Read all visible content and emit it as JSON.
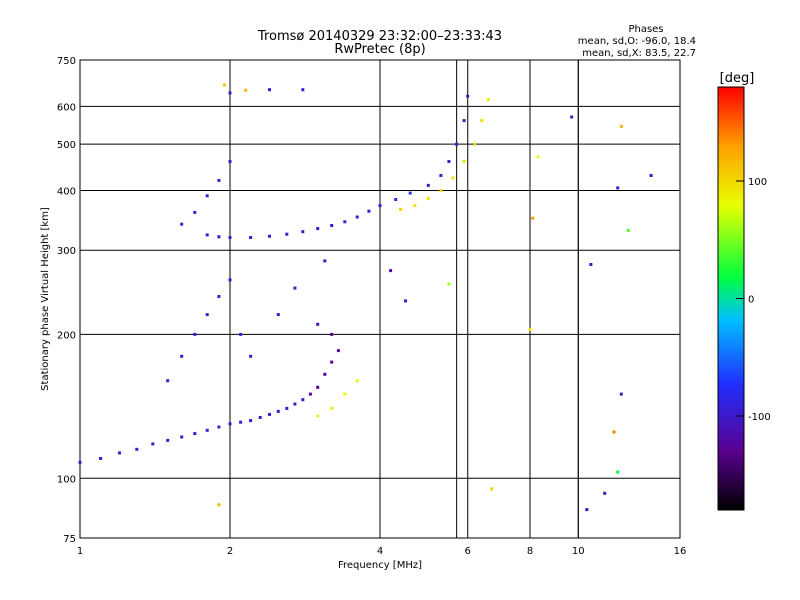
{
  "header": {
    "title_line1": "Tromsø 20140329 23:32:00–23:33:43",
    "title_line2": "RwPretec (8p)"
  },
  "stats": {
    "heading": "Phases",
    "line_o": "mean, sd,O: -96.0, 18.4",
    "line_x": "mean, sd,X: 83.5, 22.7"
  },
  "colorbar": {
    "unit": "[deg]",
    "ticks": [
      {
        "value": 100,
        "label": "100"
      },
      {
        "value": 0,
        "label": "0"
      },
      {
        "value": -100,
        "label": "-100"
      }
    ],
    "range": [
      -180,
      180
    ],
    "colors": [
      "#000000",
      "#5a0090",
      "#2030ff",
      "#00c0ff",
      "#00ff40",
      "#e8ff00",
      "#ffa000",
      "#ff0000"
    ]
  },
  "chart_data": {
    "type": "scatter",
    "title": "Tromsø 20140329 23:32:00–23:33:43",
    "subtitle": "RwPretec (8p)",
    "xlabel": "Frequency [MHz]",
    "ylabel": "Stationary phase Virtual Height [km]",
    "xscale": "log",
    "yscale": "log",
    "xlim": [
      1,
      16
    ],
    "ylim": [
      75,
      750
    ],
    "xticks": [
      {
        "value": 1,
        "label": "1"
      },
      {
        "value": 2,
        "label": "2"
      },
      {
        "value": 4,
        "label": "4"
      },
      {
        "value": 6,
        "label": "6"
      },
      {
        "value": 8,
        "label": "8"
      },
      {
        "value": 10,
        "label": "10"
      },
      {
        "value": 16,
        "label": "16"
      }
    ],
    "xgrid_extra": [
      5.7,
      8,
      10
    ],
    "yticks": [
      {
        "value": 75,
        "label": "75"
      },
      {
        "value": 100,
        "label": "100"
      },
      {
        "value": 200,
        "label": "200"
      },
      {
        "value": 300,
        "label": "300"
      },
      {
        "value": 400,
        "label": "400"
      },
      {
        "value": 500,
        "label": "500"
      },
      {
        "value": 600,
        "label": "600"
      },
      {
        "value": 750,
        "label": "750"
      }
    ],
    "grid": true,
    "color_variable": "phase [deg]",
    "series": [
      {
        "points": [
          [
            1.0,
            108,
            -98
          ],
          [
            1.1,
            110,
            -97
          ],
          [
            1.2,
            113,
            -96
          ],
          [
            1.3,
            115,
            -95
          ],
          [
            1.4,
            118,
            -96
          ],
          [
            1.5,
            120,
            -97
          ],
          [
            1.6,
            122,
            -96
          ],
          [
            1.7,
            124,
            -95
          ],
          [
            1.8,
            126,
            -96
          ],
          [
            1.9,
            128,
            -97
          ],
          [
            2.0,
            130,
            -96
          ],
          [
            2.1,
            131,
            -95
          ],
          [
            2.2,
            132,
            -96
          ],
          [
            2.3,
            134,
            -97
          ],
          [
            2.4,
            136,
            -96
          ],
          [
            2.5,
            138,
            -95
          ],
          [
            2.6,
            140,
            -96
          ],
          [
            2.7,
            143,
            -97
          ],
          [
            2.8,
            146,
            -96
          ],
          [
            2.9,
            150,
            -120
          ],
          [
            3.0,
            155,
            -125
          ],
          [
            3.1,
            165,
            -125
          ],
          [
            3.2,
            175,
            -125
          ],
          [
            3.3,
            185,
            -120
          ],
          [
            1.5,
            160,
            -96
          ],
          [
            1.6,
            180,
            -96
          ],
          [
            1.7,
            200,
            -96
          ],
          [
            1.8,
            220,
            -96
          ],
          [
            1.9,
            240,
            -96
          ],
          [
            2.0,
            260,
            -96
          ],
          [
            2.1,
            200,
            -96
          ],
          [
            2.2,
            180,
            -96
          ],
          [
            2.5,
            220,
            -96
          ],
          [
            2.7,
            250,
            -96
          ],
          [
            3.0,
            210,
            -110
          ],
          [
            3.2,
            200,
            -130
          ],
          [
            1.8,
            323,
            -96
          ],
          [
            1.9,
            320,
            -97
          ],
          [
            2.0,
            319,
            -96
          ],
          [
            2.2,
            319,
            -95
          ],
          [
            2.4,
            321,
            -96
          ],
          [
            2.6,
            324,
            -97
          ],
          [
            2.8,
            328,
            -96
          ],
          [
            3.0,
            333,
            -96
          ],
          [
            3.2,
            338,
            -95
          ],
          [
            3.4,
            344,
            -96
          ],
          [
            3.6,
            352,
            -97
          ],
          [
            3.8,
            362,
            -96
          ],
          [
            4.0,
            372,
            -90
          ],
          [
            4.3,
            383,
            -80
          ],
          [
            4.6,
            395,
            -70
          ],
          [
            5.0,
            410,
            -96
          ],
          [
            5.3,
            430,
            -96
          ],
          [
            5.5,
            460,
            -96
          ],
          [
            5.7,
            500,
            -96
          ],
          [
            5.9,
            560,
            -96
          ],
          [
            6.0,
            630,
            -96
          ],
          [
            1.6,
            340,
            -96
          ],
          [
            1.7,
            360,
            -96
          ],
          [
            1.8,
            390,
            -96
          ],
          [
            1.9,
            420,
            -96
          ],
          [
            2.0,
            460,
            -96
          ],
          [
            2.0,
            640,
            -96
          ],
          [
            2.4,
            650,
            -96
          ],
          [
            2.8,
            650,
            -96
          ],
          [
            3.0,
            135,
            85
          ],
          [
            3.2,
            140,
            90
          ],
          [
            3.4,
            150,
            85
          ],
          [
            3.6,
            160,
            80
          ],
          [
            4.4,
            365,
            100
          ],
          [
            4.7,
            372,
            95
          ],
          [
            5.0,
            385,
            90
          ],
          [
            5.3,
            400,
            92
          ],
          [
            5.6,
            425,
            95
          ],
          [
            5.9,
            460,
            98
          ],
          [
            6.2,
            500,
            100
          ],
          [
            6.4,
            560,
            95
          ],
          [
            6.6,
            620,
            90
          ],
          [
            1.95,
            665,
            110
          ],
          [
            2.15,
            648,
            120
          ],
          [
            8.1,
            350,
            130
          ],
          [
            8.3,
            470,
            80
          ],
          [
            8.0,
            205,
            90
          ],
          [
            12.2,
            545,
            120
          ],
          [
            12.6,
            330,
            40
          ],
          [
            11.8,
            125,
            140
          ],
          [
            10.6,
            280,
            -100
          ],
          [
            6.7,
            95,
            100
          ],
          [
            10.4,
            86,
            -110
          ],
          [
            11.3,
            93,
            -100
          ],
          [
            12.0,
            103,
            20
          ],
          [
            12.2,
            150,
            -110
          ],
          [
            14.0,
            430,
            -100
          ],
          [
            9.7,
            570,
            -96
          ],
          [
            12.0,
            405,
            -96
          ],
          [
            1.9,
            88,
            120
          ],
          [
            5.5,
            255,
            60
          ],
          [
            4.5,
            235,
            -96
          ],
          [
            4.2,
            272,
            -120
          ],
          [
            3.1,
            285,
            -96
          ]
        ]
      }
    ]
  }
}
